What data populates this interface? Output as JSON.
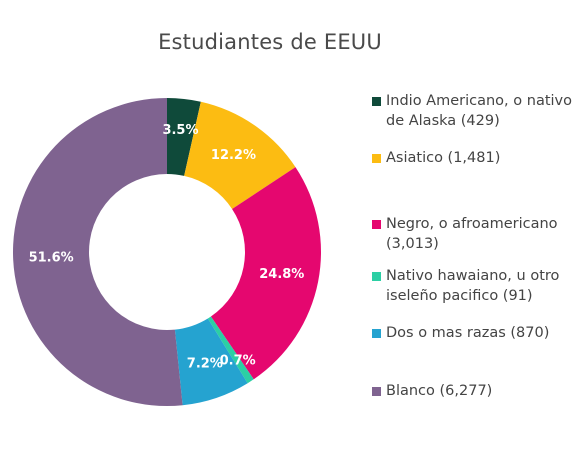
{
  "chart_data": {
    "type": "pie",
    "title": "Estudiantes de EEUU",
    "donut": true,
    "legend_position": "right",
    "categories": [
      "Indio Americano, o nativo de Alaska (429)",
      "Asiatico  (1,481)",
      "Negro, o afroamericano (3,013)",
      "Nativo hawaiano, u otro iseleño pacifico (91)",
      "Dos o mas razas (870)",
      "Blanco (6,277)"
    ],
    "values": [
      429,
      1481,
      3013,
      91,
      870,
      6277
    ],
    "percent_labels": [
      "3.5%",
      "12.2%",
      "24.8%",
      "0.7%",
      "7.2%",
      "51.6%"
    ],
    "colors": [
      "#0f4a3a",
      "#fcbc12",
      "#e5076f",
      "#2ccfa4",
      "#25a3d0",
      "#7f6390"
    ]
  }
}
